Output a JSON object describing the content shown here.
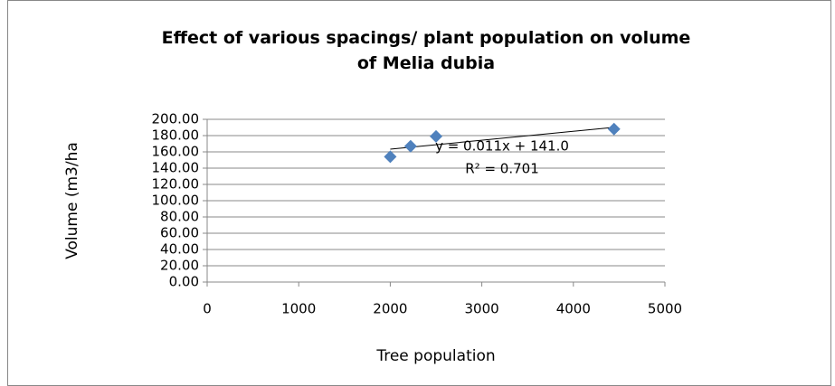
{
  "chart_data": {
    "type": "scatter",
    "title": "Effect of various spacings/ plant population on volume of Melia dubia",
    "x_label": "Tree population",
    "y_label": "Volume (m3/ha",
    "series": [
      {
        "name": "Volume",
        "color": "#4f81bd",
        "x": [
          2000,
          2222,
          2500,
          4444
        ],
        "values": [
          154,
          167,
          179,
          188
        ]
      }
    ],
    "trendline": true,
    "annotations": [
      "y = 0.011x + 141.0",
      "R² = 0.701"
    ],
    "xlim": [
      0,
      5000
    ],
    "xticks": [
      0,
      1000,
      2000,
      3000,
      4000,
      5000
    ],
    "ylim": [
      0,
      200
    ],
    "yticks": [
      {
        "value": 0,
        "label": "0.00"
      },
      {
        "value": 20,
        "label": "20.00"
      },
      {
        "value": 40,
        "label": "40.00"
      },
      {
        "value": 60,
        "label": "60.00"
      },
      {
        "value": 80,
        "label": "80.00"
      },
      {
        "value": 100,
        "label": "100.00"
      },
      {
        "value": 120,
        "label": "120.00"
      },
      {
        "value": 140,
        "label": "140.00"
      },
      {
        "value": 160,
        "label": "160.00"
      },
      {
        "value": 180,
        "label": "180.00"
      },
      {
        "value": 200,
        "label": "200.00"
      }
    ],
    "grid": true
  }
}
